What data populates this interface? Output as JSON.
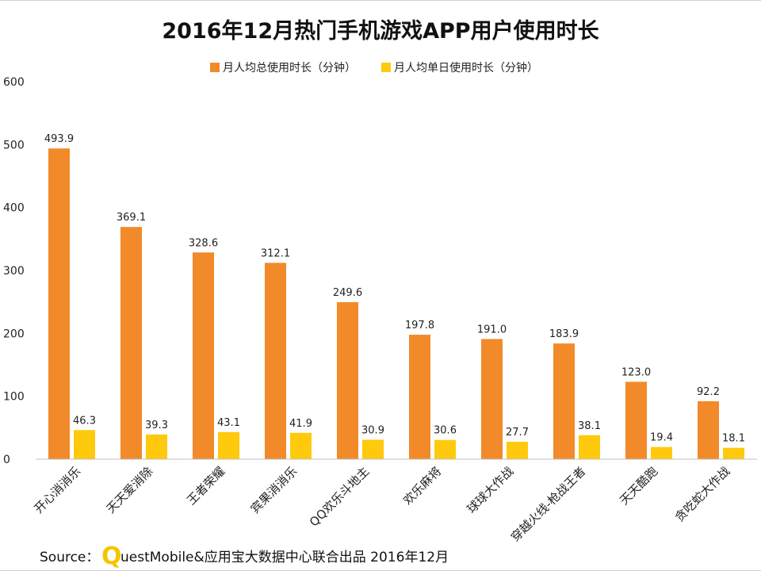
{
  "chart_data": {
    "type": "bar",
    "title": "2016年12月热门手机游戏APP用户使用时长",
    "categories": [
      "开心消消乐",
      "天天爱消除",
      "王者荣耀",
      "宾果消消乐",
      "QQ欢乐斗地主",
      "欢乐麻将",
      "球球大作战",
      "穿越火线-枪战王者",
      "天天酷跑",
      "贪吃蛇大作战"
    ],
    "series": [
      {
        "name": "月人均总使用时长（分钟）",
        "color": "#F28A2A",
        "values": [
          493.9,
          369.1,
          328.6,
          312.1,
          249.6,
          197.8,
          191.0,
          183.9,
          123.0,
          92.2
        ],
        "labels": [
          "493.9",
          "369.1",
          "328.6",
          "312.1",
          "249.6",
          "197.8",
          "191.0",
          "183.9",
          "123.0",
          "92.2"
        ]
      },
      {
        "name": "月人均单日使用时长（分钟）",
        "color": "#FFC90E",
        "values": [
          46.3,
          39.3,
          43.1,
          41.9,
          30.9,
          30.6,
          27.7,
          38.1,
          19.4,
          18.1
        ],
        "labels": [
          "46.3",
          "39.3",
          "43.1",
          "41.9",
          "30.9",
          "30.6",
          "27.7",
          "38.1",
          "19.4",
          "18.1"
        ]
      }
    ],
    "yticks": [
      "0",
      "100",
      "200",
      "300",
      "400",
      "500",
      "600"
    ],
    "ylim": [
      0,
      600
    ],
    "grid": false,
    "legend_position": "top-center"
  },
  "source": {
    "prefix": "Source：",
    "logo_letter": "Q",
    "text": "uestMobile&应用宝大数据中心联合出品 2016年12月"
  }
}
